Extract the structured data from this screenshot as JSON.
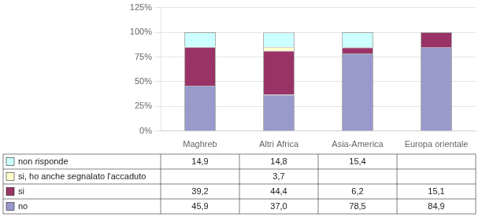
{
  "chart_data": {
    "type": "bar",
    "stacked": true,
    "grid": true,
    "categories": [
      "Maghreb",
      "Altri Africa",
      "Asia-America",
      "Europa orientale"
    ],
    "series": [
      {
        "name": "no",
        "color": "#9999CC",
        "values": [
          45.9,
          37.0,
          78.5,
          84.9
        ],
        "value_labels": [
          "45,9",
          "37,0",
          "78,5",
          "84,9"
        ]
      },
      {
        "name": "si",
        "color": "#993366",
        "values": [
          39.2,
          44.4,
          6.2,
          15.1
        ],
        "value_labels": [
          "39,2",
          "44,4",
          "6,2",
          "15,1"
        ]
      },
      {
        "name": "si, ho anche segnalato l'accaduto",
        "color": "#FFFFCC",
        "values": [
          0.0,
          3.7,
          0.0,
          0.0
        ],
        "value_labels": [
          null,
          "3,7",
          null,
          null
        ]
      },
      {
        "name": "non risponde",
        "color": "#CCFFFF",
        "values": [
          14.9,
          14.8,
          15.4,
          0.0
        ],
        "value_labels": [
          "14,9",
          "14,8",
          "15,4",
          null
        ]
      }
    ],
    "ylim": [
      0,
      125
    ],
    "yticks": [
      {
        "value": 0,
        "label": "0%"
      },
      {
        "value": 25,
        "label": "25%"
      },
      {
        "value": 50,
        "label": "50%"
      },
      {
        "value": 75,
        "label": "75%"
      },
      {
        "value": 100,
        "label": "100%"
      },
      {
        "value": 125,
        "label": "125%"
      }
    ]
  }
}
